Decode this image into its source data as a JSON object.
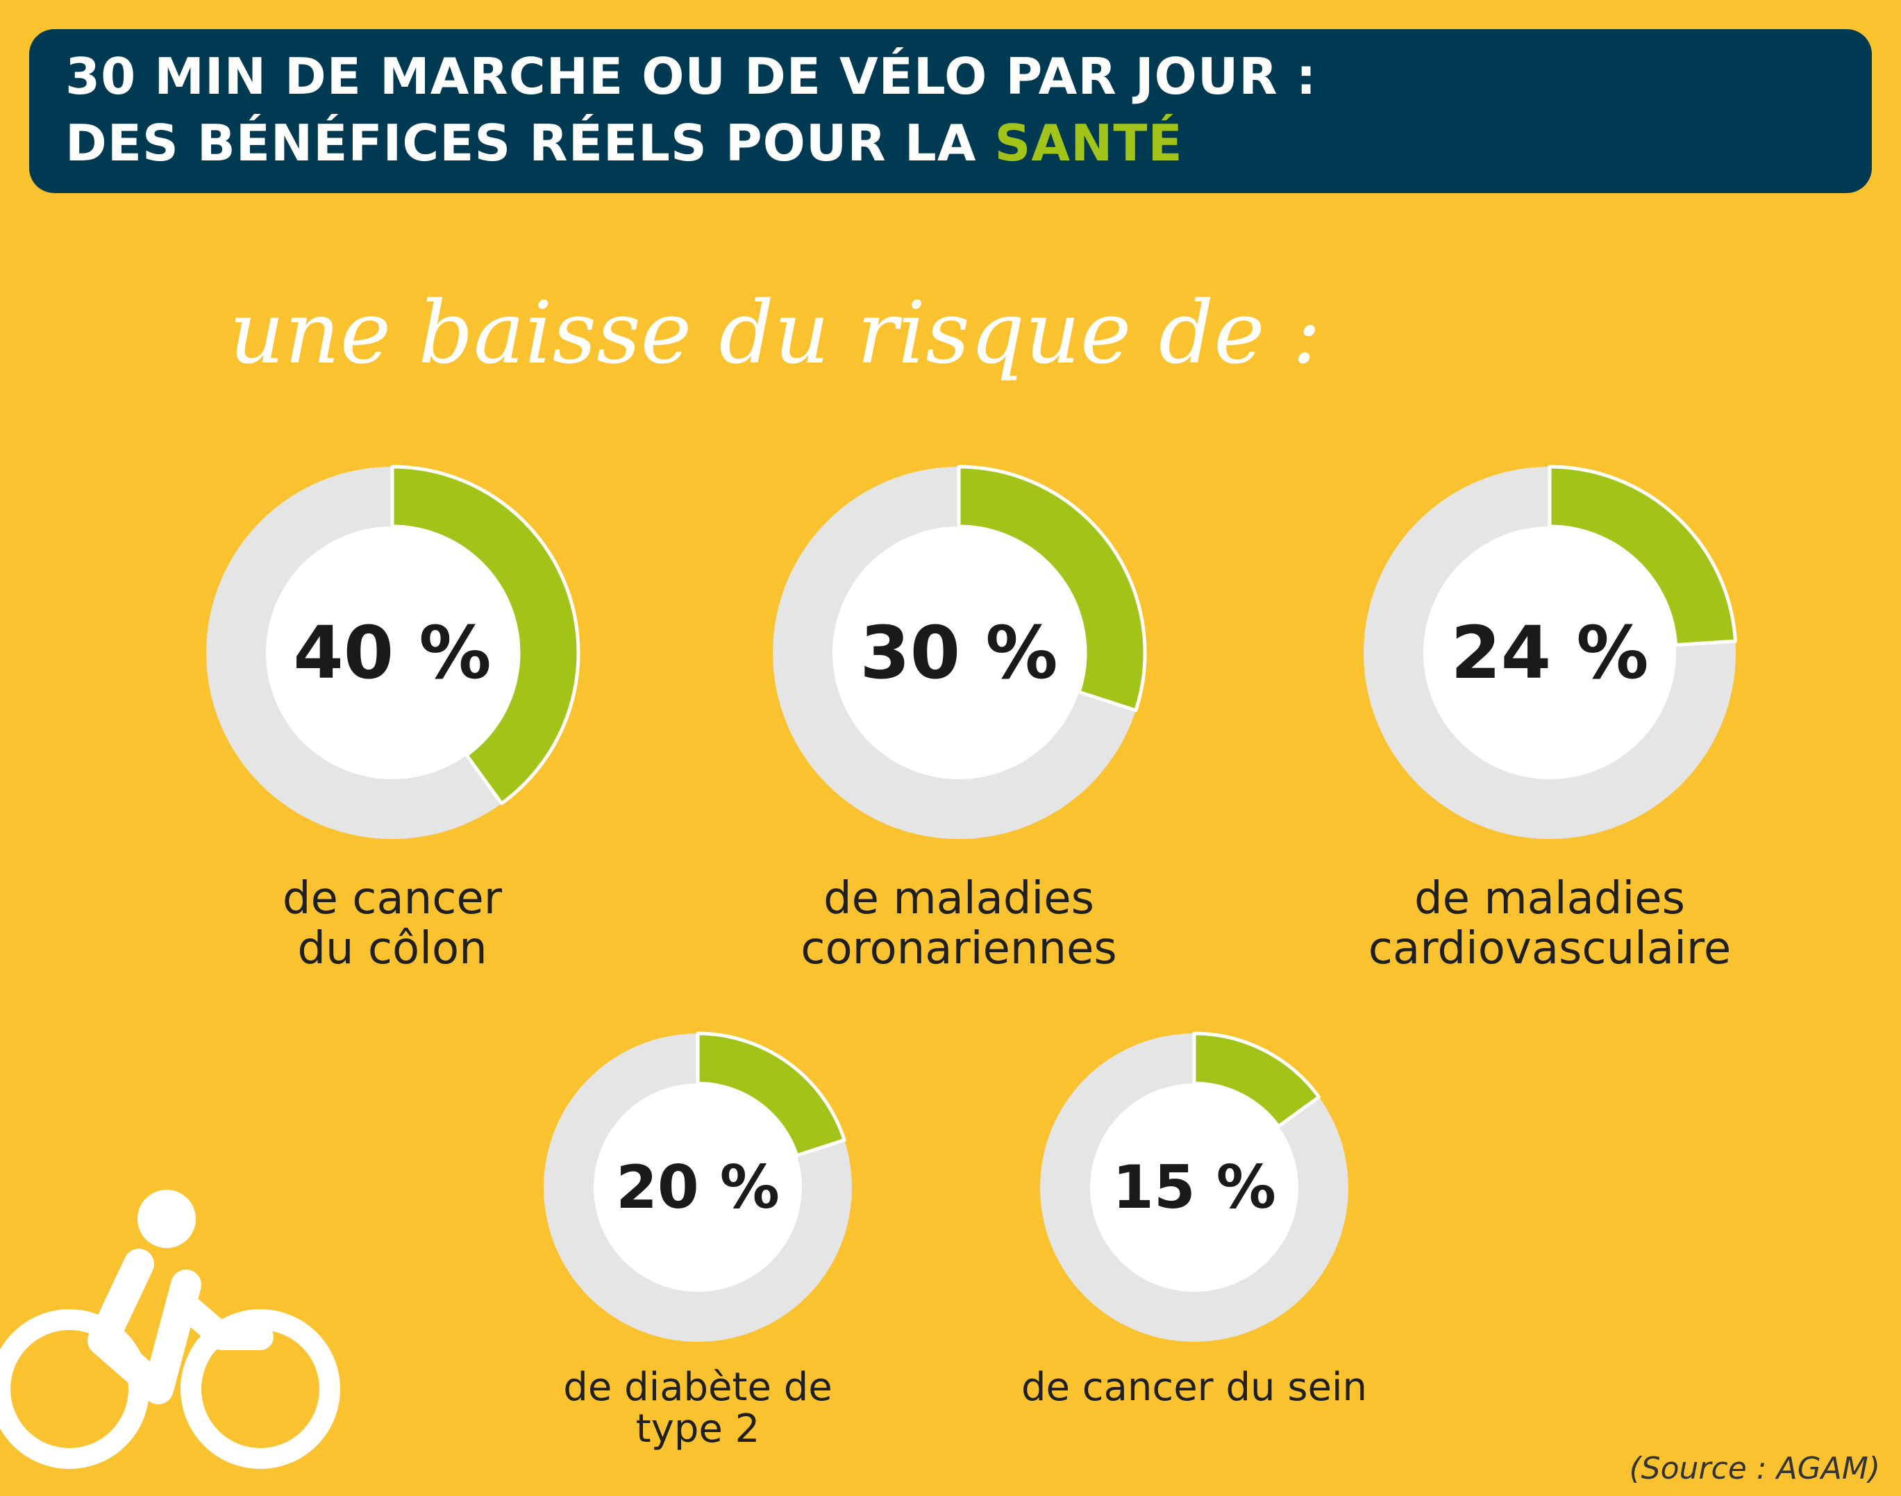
{
  "header": {
    "line1": "30 MIN DE MARCHE OU DE VÉLO PAR JOUR :",
    "line2_prefix": "DES BÉNÉFICES RÉELS POUR LA ",
    "line2_accent": "SANTÉ"
  },
  "subtitle": "une baisse du risque de :",
  "source": "(Source : AGAM)",
  "colors": {
    "background": "#fac22e",
    "header_bg": "#003a52",
    "accent": "#a2c418",
    "ring_track": "#e5e5e5",
    "center": "#ffffff"
  },
  "icons": [
    "cyclist-icon"
  ],
  "chart_data": {
    "type": "pie",
    "title": "",
    "items": [
      {
        "value": 40,
        "value_label": "40 %",
        "label_line1": "de cancer",
        "label_line2": "du côlon"
      },
      {
        "value": 30,
        "value_label": "30 %",
        "label_line1": "de maladies",
        "label_line2": "coronariennes"
      },
      {
        "value": 24,
        "value_label": "24 %",
        "label_line1": "de maladies",
        "label_line2": "cardiovasculaire"
      },
      {
        "value": 20,
        "value_label": "20 %",
        "label_line1": "de diabète de",
        "label_line2": "type 2"
      },
      {
        "value": 15,
        "value_label": "15 %",
        "label_line1": "de cancer du sein",
        "label_line2": ""
      }
    ]
  }
}
